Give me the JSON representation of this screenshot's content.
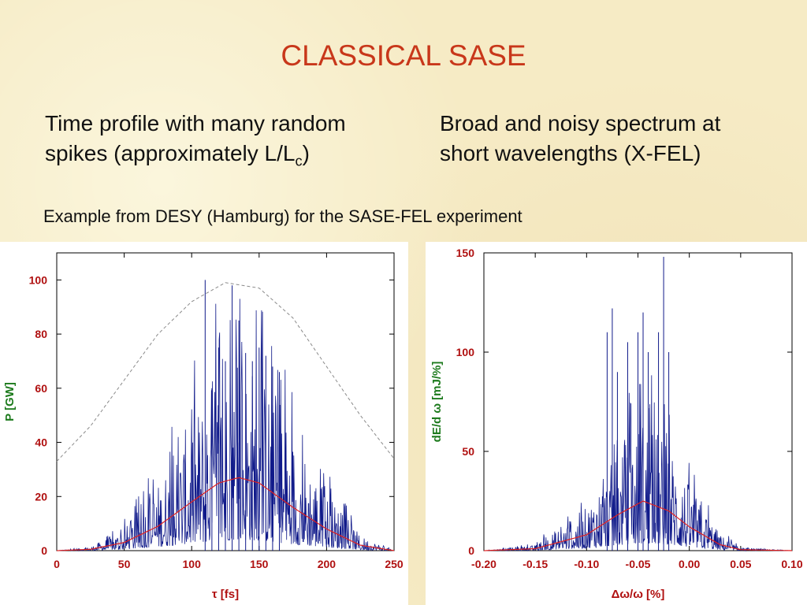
{
  "title": "CLASSICAL SASE",
  "left_text": {
    "line1": "Time profile with many random",
    "line2_main": "spikes (approximately L/L",
    "line2_sub": "c",
    "line2_end": ")"
  },
  "right_text": {
    "line1": "Broad and noisy spectrum at",
    "line2": "short wavelengths (X-FEL)"
  },
  "subtitle": "Example from DESY (Hamburg) for the SASE-FEL experiment",
  "colors": {
    "title": "#c8371a",
    "spikes": "#101a8a",
    "fit": "#e02020",
    "envelope": "#8a8a8a",
    "ticks": "#b01010",
    "axis_label": "#1c7a1c"
  },
  "chart_data": [
    {
      "type": "line",
      "title": "",
      "xlabel": "τ [fs]",
      "ylabel": "P [GW]",
      "xlim": [
        0,
        250
      ],
      "ylim": [
        0,
        110
      ],
      "xticks": [
        "0",
        "50",
        "100",
        "150",
        "200",
        "250"
      ],
      "yticks": [
        "0",
        "20",
        "40",
        "60",
        "80",
        "100"
      ],
      "series": [
        {
          "style": "spikes",
          "x": [
            110,
            115,
            120,
            125,
            130,
            135,
            140,
            145,
            150,
            155,
            160,
            165
          ],
          "y": [
            100,
            60,
            75,
            70,
            98,
            85,
            73,
            70,
            75,
            72,
            68,
            66
          ]
        },
        {
          "style": "fit",
          "x": [
            0,
            25,
            50,
            75,
            100,
            120,
            135,
            150,
            175,
            200,
            225,
            250
          ],
          "y": [
            0,
            0.5,
            3,
            9,
            18,
            25,
            27,
            25,
            16,
            8,
            2,
            0
          ]
        },
        {
          "style": "envelope",
          "x": [
            0,
            25,
            50,
            75,
            100,
            125,
            150,
            175,
            200,
            225,
            250
          ],
          "y": [
            33,
            46,
            63,
            80,
            92,
            99,
            97,
            86,
            68,
            50,
            34
          ]
        }
      ]
    },
    {
      "type": "line",
      "title": "",
      "xlabel": "Δω/ω [%]",
      "ylabel": "dE/d ω [mJ/%]",
      "xlim": [
        -0.2,
        0.1
      ],
      "ylim": [
        0,
        150
      ],
      "xticks": [
        "-0.20",
        "-0.15",
        "-0.10",
        "-0.05",
        "0.00",
        "0.05",
        "0.10"
      ],
      "yticks": [
        "0",
        "50",
        "100",
        "150"
      ],
      "series": [
        {
          "style": "spikes",
          "x": [
            -0.08,
            -0.075,
            -0.07,
            -0.06,
            -0.05,
            -0.045,
            -0.04,
            -0.03,
            -0.025,
            -0.02
          ],
          "y": [
            110,
            122,
            90,
            105,
            110,
            120,
            100,
            110,
            148,
            100
          ]
        },
        {
          "style": "fit",
          "x": [
            -0.2,
            -0.15,
            -0.1,
            -0.07,
            -0.045,
            -0.02,
            0.0,
            0.03,
            0.05,
            0.1
          ],
          "y": [
            0,
            1,
            8,
            18,
            25,
            20,
            12,
            3,
            0.5,
            0
          ]
        }
      ]
    }
  ]
}
